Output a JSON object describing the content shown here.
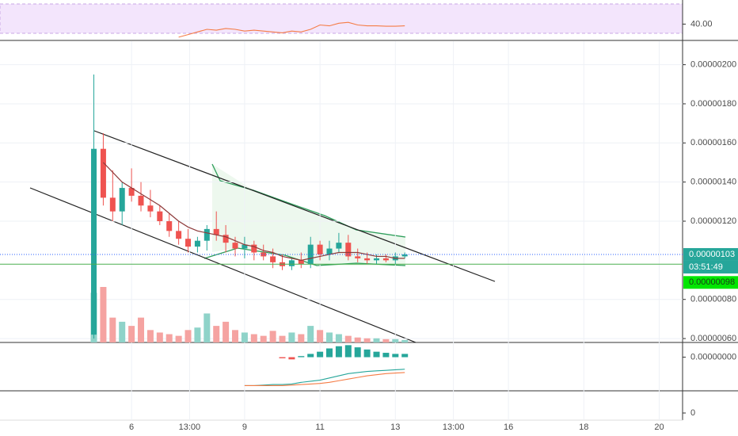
{
  "chart_data": {
    "type": "candlestick",
    "xlim": [
      2.51,
      20.62
    ],
    "xticks": [
      6,
      {
        "value": 7.54,
        "label": "13:00"
      },
      9,
      11,
      13,
      {
        "value": 14.54,
        "label": "13:00"
      },
      16,
      18,
      20
    ],
    "ylim": [
      5.8e-07,
      2.12e-06
    ],
    "yticks": [
      {
        "value": 2e-06,
        "label": "0.00000200"
      },
      {
        "value": 1.8e-06,
        "label": "0.00000180"
      },
      {
        "value": 1.6e-06,
        "label": "0.00000160"
      },
      {
        "value": 1.4e-06,
        "label": "0.00000140"
      },
      {
        "value": 1.2e-06,
        "label": "0.00000120"
      },
      {
        "value": 8e-07,
        "label": "0.00000080"
      },
      {
        "value": 6e-07,
        "label": "0.00000060"
      }
    ],
    "grid": true,
    "up_color": "#26a69a",
    "down_color": "#ef5350",
    "x": [
      5,
      5.25,
      5.5,
      5.75,
      6,
      6.25,
      6.5,
      6.75,
      7,
      7.25,
      7.5,
      7.75,
      8,
      8.25,
      8.5,
      8.75,
      9,
      9.25,
      9.5,
      9.75,
      10,
      10.25,
      10.5,
      10.75,
      11,
      11.25,
      11.5,
      11.75,
      12,
      12.25,
      12.5,
      12.75,
      13,
      13.25
    ],
    "open": [
      6.2e-07,
      1.57e-06,
      1.32e-06,
      1.25e-06,
      1.37e-06,
      1.33e-06,
      1.28e-06,
      1.25e-06,
      1.2e-06,
      1.15e-06,
      1.11e-06,
      1.07e-06,
      1.1e-06,
      1.16e-06,
      1.13e-06,
      1.09e-06,
      1.06e-06,
      1.08e-06,
      1.04e-06,
      1.02e-06,
      9.9e-07,
      9.7e-07,
      1e-06,
      9.8e-07,
      1.08e-06,
      1.03e-06,
      1.06e-06,
      1.09e-06,
      1.02e-06,
      1.01e-06,
      1e-06,
      1.01e-06,
      1e-06,
      1.02e-06
    ],
    "high": [
      1.95e-06,
      1.65e-06,
      1.46e-06,
      1.4e-06,
      1.47e-06,
      1.4e-06,
      1.36e-06,
      1.28e-06,
      1.24e-06,
      1.2e-06,
      1.16e-06,
      1.12e-06,
      1.18e-06,
      1.25e-06,
      1.18e-06,
      1.12e-06,
      1.12e-06,
      1.1e-06,
      1.08e-06,
      1.06e-06,
      1.03e-06,
      1.01e-06,
      1.04e-06,
      1.12e-06,
      1.1e-06,
      1.1e-06,
      1.14e-06,
      1.13e-06,
      1.06e-06,
      1.04e-06,
      1.03e-06,
      1.03e-06,
      1.04e-06,
      1.04e-06
    ],
    "low": [
      6e-07,
      1.28e-06,
      1.2e-06,
      1.18e-06,
      1.3e-06,
      1.25e-06,
      1.22e-06,
      1.18e-06,
      1.12e-06,
      1.08e-06,
      1.04e-06,
      1.04e-06,
      1.05e-06,
      1.1e-06,
      1.04e-06,
      1.02e-06,
      1.01e-06,
      1e-06,
      1e-06,
      9.6e-07,
      9.5e-07,
      9.5e-07,
      9.6e-07,
      9.6e-07,
      1e-06,
      1e-06,
      1.04e-06,
      1e-06,
      9.9e-07,
      9.8e-07,
      9.8e-07,
      9.9e-07,
      9.8e-07,
      1.01e-06
    ],
    "close": [
      1.57e-06,
      1.32e-06,
      1.25e-06,
      1.37e-06,
      1.33e-06,
      1.28e-06,
      1.25e-06,
      1.2e-06,
      1.15e-06,
      1.11e-06,
      1.07e-06,
      1.1e-06,
      1.16e-06,
      1.13e-06,
      1.09e-06,
      1.06e-06,
      1.08e-06,
      1.04e-06,
      1.02e-06,
      9.9e-07,
      9.7e-07,
      1e-06,
      9.8e-07,
      1.08e-06,
      1.03e-06,
      1.06e-06,
      1.09e-06,
      1.02e-06,
      1.01e-06,
      1e-06,
      1.01e-06,
      1e-06,
      1.02e-06,
      1.03e-06
    ],
    "ma": [
      null,
      1.5e-06,
      1.45e-06,
      1.4e-06,
      1.37e-06,
      1.34e-06,
      1.31e-06,
      1.28e-06,
      1.24e-06,
      1.2e-06,
      1.17e-06,
      1.15e-06,
      1.14e-06,
      1.13e-06,
      1.12e-06,
      1.1e-06,
      1.08e-06,
      1.07e-06,
      1.05e-06,
      1.04e-06,
      1.02e-06,
      1.01e-06,
      1e-06,
      1.01e-06,
      1.02e-06,
      1.03e-06,
      1.04e-06,
      1.04e-06,
      1.04e-06,
      1.03e-06,
      1.02e-06,
      1.02e-06,
      1.01e-06,
      1.01e-06
    ],
    "ma_color": "#8d3a3a",
    "volume": [
      60,
      67,
      30,
      25,
      20,
      30,
      15,
      12,
      10,
      8,
      15,
      18,
      35,
      20,
      25,
      15,
      12,
      10,
      8,
      14,
      8,
      12,
      10,
      20,
      15,
      12,
      10,
      8,
      6,
      5,
      5,
      4,
      4,
      3
    ],
    "last_price": {
      "value": 1.03e-06,
      "label": "0.00000103"
    },
    "countdown": "03:51:49",
    "level": {
      "value": 9.8e-07,
      "label": "0.00000098"
    },
    "rsi": [
      null,
      null,
      null,
      null,
      null,
      null,
      null,
      null,
      null,
      32.5,
      34,
      35.5,
      37,
      36.5,
      37.5,
      37,
      36,
      36.5,
      36,
      35.5,
      35,
      36,
      35.5,
      37,
      39.5,
      39,
      40.5,
      41,
      39.5,
      39,
      39,
      38.8,
      38.8,
      39
    ],
    "rsi_color": "#f57c46",
    "rsi_ylim": [
      32,
      52
    ],
    "rsi_yticks": [
      {
        "value": 40,
        "label": "40.00"
      }
    ],
    "macd_ylim": [
      -3e-08,
      1.2e-08
    ],
    "macd_yticks": [
      {
        "value": 0,
        "label": "0.00000000"
      }
    ],
    "macd_hist": [
      null,
      null,
      null,
      null,
      null,
      null,
      null,
      null,
      null,
      null,
      null,
      null,
      null,
      null,
      null,
      null,
      null,
      null,
      null,
      null,
      -1e-09,
      -2e-09,
      1e-09,
      3e-09,
      5e-09,
      8e-09,
      1e-08,
      1.1e-08,
      9e-09,
      7e-09,
      5e-09,
      4e-09,
      3e-09,
      3e-09
    ],
    "macd_line": [
      null,
      null,
      null,
      null,
      null,
      null,
      null,
      null,
      null,
      null,
      null,
      null,
      null,
      null,
      null,
      null,
      -2.6e-08,
      -2.6e-08,
      -2.55e-08,
      -2.5e-08,
      -2.5e-08,
      -2.45e-08,
      -2.3e-08,
      -2.2e-08,
      -2.1e-08,
      -1.9e-08,
      -1.7e-08,
      -1.5e-08,
      -1.4e-08,
      -1.3e-08,
      -1.25e-08,
      -1.2e-08,
      -1.15e-08,
      -1.1e-08
    ],
    "signal_line": [
      null,
      null,
      null,
      null,
      null,
      null,
      null,
      null,
      null,
      null,
      null,
      null,
      null,
      null,
      null,
      null,
      -2.6e-08,
      -2.6e-08,
      -2.6e-08,
      -2.6e-08,
      -2.6e-08,
      -2.55e-08,
      -2.5e-08,
      -2.45e-08,
      -2.4e-08,
      -2.3e-08,
      -2.15e-08,
      -2e-08,
      -1.85e-08,
      -1.7e-08,
      -1.6e-08,
      -1.5e-08,
      -1.45e-08,
      -1.4e-08
    ],
    "macd_color": "#26a69a",
    "signal_color": "#f57c46",
    "osc_yticks": [
      0
    ]
  }
}
